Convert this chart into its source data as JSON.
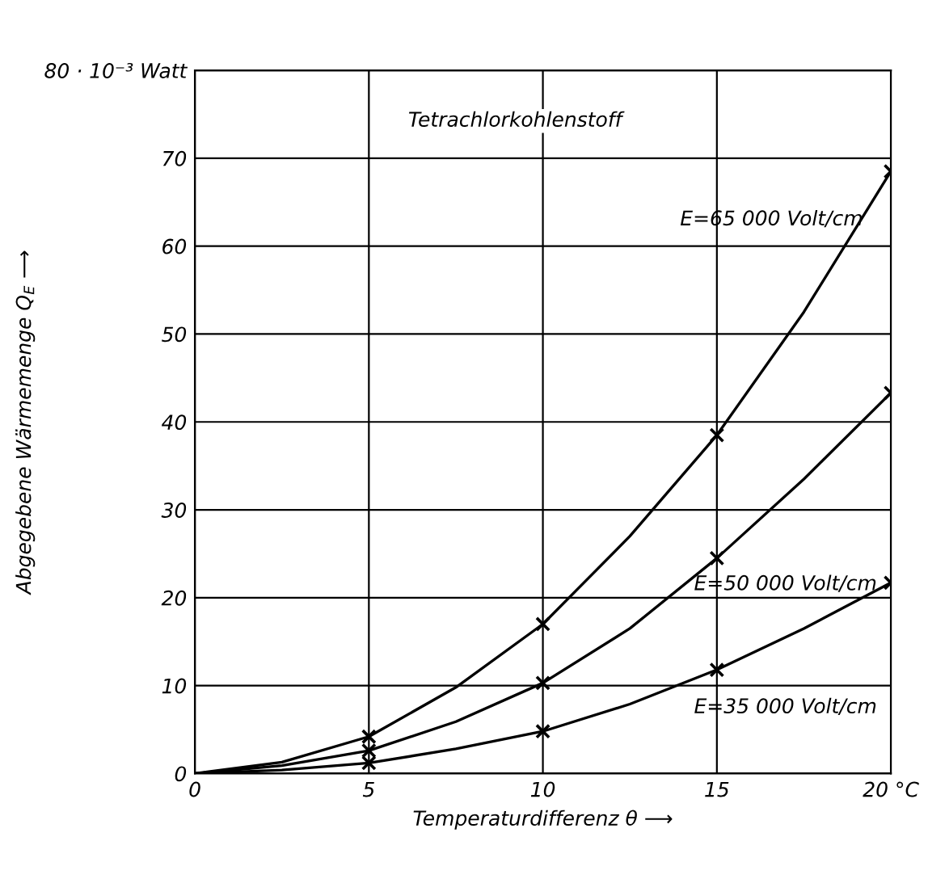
{
  "chart_data": {
    "type": "line",
    "xlabel": "Temperaturdifferenz θ ⟶",
    "ylabel": "Abgegebene Wärmemenge Q$_{E}$ ⟶",
    "annotations": [
      "Tetrachlorkohlenstoff"
    ],
    "x": [
      0,
      2.5,
      5,
      7.5,
      10,
      12.5,
      15,
      17.5,
      20
    ],
    "series": [
      {
        "name": "E=65 000 Volt/cm",
        "color": "#000000",
        "values": [
          0,
          1.3,
          4.2,
          9.8,
          17,
          27,
          38.5,
          52.5,
          68.5
        ]
      },
      {
        "name": "E=50 000 Volt/cm",
        "color": "#000000",
        "values": [
          0,
          0.9,
          2.6,
          5.9,
          10.3,
          16.5,
          24.5,
          33.5,
          43.3
        ]
      },
      {
        "name": "E=35 000 Volt/cm",
        "color": "#000000",
        "values": [
          0,
          0.4,
          1.2,
          2.8,
          4.8,
          7.9,
          11.8,
          16.5,
          21.7
        ]
      },
      {
        "type": "scatter",
        "marker": "cross",
        "color": "#000000",
        "x": [
          5,
          10,
          15,
          20,
          5,
          10,
          15,
          20,
          5,
          10,
          15,
          20
        ],
        "values": [
          4.2,
          17,
          38.5,
          68.5,
          2.6,
          10.3,
          24.5,
          43.3,
          1.2,
          4.8,
          11.8,
          21.7
        ]
      }
    ],
    "xlim": [
      0,
      20
    ],
    "ylim": [
      0,
      80
    ],
    "xticks": [
      0,
      5,
      10,
      15,
      {
        "value": 20,
        "label": "20 °C"
      }
    ],
    "yticks": [
      0,
      10,
      20,
      30,
      40,
      50,
      60,
      70,
      {
        "value": 80,
        "label": "80 · 10⁻³ Watt"
      }
    ],
    "grid": true,
    "line_style": "solid",
    "legend": false
  }
}
